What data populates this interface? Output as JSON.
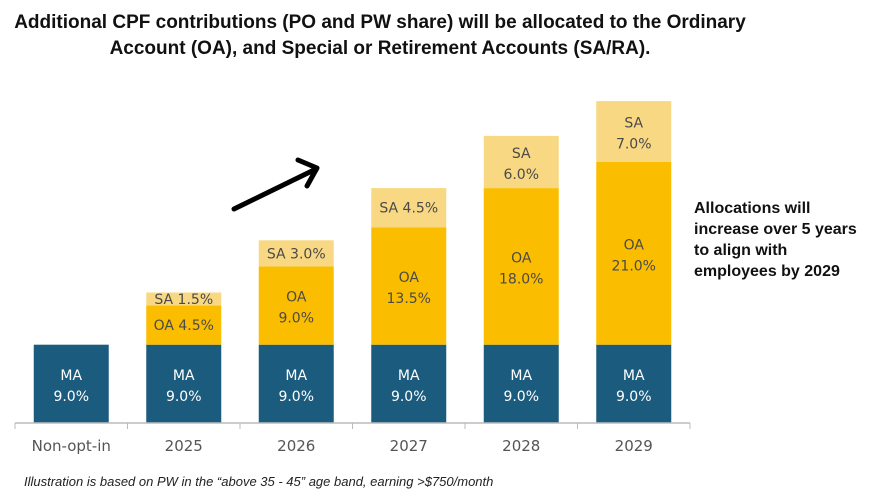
{
  "chart_data": {
    "type": "bar",
    "stacked": true,
    "title": "Additional CPF contributions (PO and PW share) will be allocated to the Ordinary Account (OA), and Special or Retirement Accounts (SA/RA).",
    "categories": [
      "Non-opt-in",
      "2025",
      "2026",
      "2027",
      "2028",
      "2029"
    ],
    "series": [
      {
        "name": "MA",
        "color": "#1b5c7e",
        "text_color": "#ffffff",
        "values": [
          9.0,
          9.0,
          9.0,
          9.0,
          9.0,
          9.0
        ]
      },
      {
        "name": "OA",
        "color": "#fbbd00",
        "text_color": "#4a4a4a",
        "values": [
          0,
          4.5,
          9.0,
          13.5,
          18.0,
          21.0
        ]
      },
      {
        "name": "SA",
        "color": "#f8d882",
        "text_color": "#4a4a4a",
        "values": [
          0,
          1.5,
          3.0,
          4.5,
          6.0,
          7.0
        ]
      }
    ],
    "ylim": [
      0,
      37
    ],
    "grid": false,
    "annotation": "Allocations will increase over 5 years to align with employees by 2029",
    "annotation_arrow": "upward trend arrow",
    "footnote": "Illustration is based on PW in the “above 35 - 45” age band, earning >$750/month"
  }
}
